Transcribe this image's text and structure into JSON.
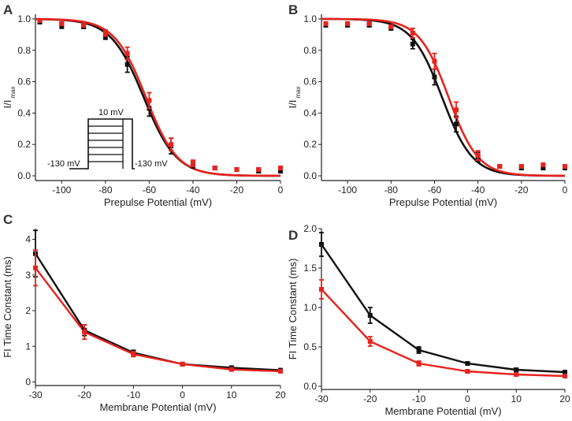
{
  "figure": {
    "panels": [
      "A",
      "B",
      "C",
      "D"
    ],
    "protocol": {
      "step_label": "10 mV",
      "hold_left_label": "-130 mV",
      "hold_right_label": "-130 mV"
    }
  },
  "colors": {
    "series1": "#111111",
    "series2": "#e8231e"
  },
  "chart_data": [
    {
      "panel": "A",
      "type": "line",
      "title": "",
      "xlabel": "Prepulse Potential (mV)",
      "ylabel": "I/I",
      "ylabel_sub": "max",
      "xlim": [
        -112,
        0
      ],
      "ylim": [
        -0.03,
        1.03
      ],
      "xticks": [
        -100,
        -80,
        -60,
        -40,
        -20,
        0
      ],
      "yticks": [
        0.0,
        0.2,
        0.4,
        0.6,
        0.8,
        1.0
      ],
      "xtick_labels": [
        "-100",
        "-80",
        "-60",
        "-40",
        "-20",
        "0"
      ],
      "ytick_labels": [
        "0.0",
        "0.2",
        "0.4",
        "0.6",
        "0.8",
        "1.0"
      ],
      "fits": [
        {
          "name": "black fit",
          "color": "#111111",
          "v_half": -62.5,
          "k": 7.5
        },
        {
          "name": "red fit",
          "color": "#e8231e",
          "v_half": -61.5,
          "k": 7.2
        }
      ],
      "series": [
        {
          "name": "black",
          "color": "#111111",
          "x": [
            -110,
            -100,
            -90,
            -80,
            -70,
            -60,
            -50,
            -40,
            -30,
            -20,
            -10,
            0
          ],
          "y": [
            0.98,
            0.96,
            0.95,
            0.89,
            0.71,
            0.43,
            0.19,
            0.07,
            0.05,
            0.04,
            0.03,
            0.03
          ],
          "err": [
            0.01,
            0.02,
            0.01,
            0.02,
            0.05,
            0.05,
            0.05,
            0.02,
            0.01,
            0.01,
            0.01,
            0.01
          ]
        },
        {
          "name": "red",
          "color": "#e8231e",
          "x": [
            -110,
            -100,
            -90,
            -80,
            -70,
            -60,
            -50,
            -40,
            -30,
            -20,
            -10,
            0
          ],
          "y": [
            0.99,
            0.97,
            0.96,
            0.91,
            0.78,
            0.48,
            0.2,
            0.08,
            0.05,
            0.04,
            0.04,
            0.05
          ],
          "err": [
            0.01,
            0.01,
            0.01,
            0.02,
            0.04,
            0.05,
            0.04,
            0.02,
            0.01,
            0.01,
            0.01,
            0.01
          ]
        }
      ]
    },
    {
      "panel": "B",
      "type": "line",
      "title": "",
      "xlabel": "Prepulse Potential (mV)",
      "ylabel": "I/I",
      "ylabel_sub": "max",
      "xlim": [
        -112,
        0
      ],
      "ylim": [
        -0.03,
        1.03
      ],
      "xticks": [
        -100,
        -80,
        -60,
        -40,
        -20,
        0
      ],
      "yticks": [
        0.0,
        0.2,
        0.4,
        0.6,
        0.8,
        1.0
      ],
      "xtick_labels": [
        "-100",
        "-80",
        "-60",
        "-40",
        "-20",
        "0"
      ],
      "ytick_labels": [
        "0.0",
        "0.2",
        "0.4",
        "0.6",
        "0.8",
        "1.0"
      ],
      "fits": [
        {
          "name": "black fit",
          "color": "#111111",
          "v_half": -56.5,
          "k": 7.0
        },
        {
          "name": "red fit",
          "color": "#e8231e",
          "v_half": -53.5,
          "k": 6.8
        }
      ],
      "series": [
        {
          "name": "black",
          "color": "#111111",
          "x": [
            -110,
            -100,
            -90,
            -80,
            -70,
            -60,
            -50,
            -40,
            -30,
            -20,
            -10,
            0
          ],
          "y": [
            0.96,
            0.96,
            0.96,
            0.94,
            0.84,
            0.63,
            0.33,
            0.12,
            0.06,
            0.05,
            0.05,
            0.05
          ],
          "err": [
            0.01,
            0.01,
            0.01,
            0.01,
            0.03,
            0.05,
            0.05,
            0.03,
            0.01,
            0.01,
            0.01,
            0.01
          ]
        },
        {
          "name": "red",
          "color": "#e8231e",
          "x": [
            -110,
            -100,
            -90,
            -80,
            -70,
            -60,
            -50,
            -40,
            -30,
            -20,
            -10,
            0
          ],
          "y": [
            0.97,
            0.97,
            0.97,
            0.95,
            0.91,
            0.73,
            0.42,
            0.13,
            0.06,
            0.06,
            0.07,
            0.06
          ],
          "err": [
            0.01,
            0.01,
            0.01,
            0.01,
            0.03,
            0.05,
            0.05,
            0.03,
            0.01,
            0.01,
            0.01,
            0.01
          ]
        }
      ]
    },
    {
      "panel": "C",
      "type": "line",
      "title": "",
      "xlabel": "Membrane Potential (mV)",
      "ylabel": "FI Time Constant (ms)",
      "ylabel_sub": "",
      "xlim": [
        -30,
        20
      ],
      "ylim": [
        -0.1,
        4.3
      ],
      "xticks": [
        -30,
        -20,
        -10,
        0,
        10,
        20
      ],
      "yticks": [
        0,
        1,
        2,
        3,
        4
      ],
      "xtick_labels": [
        "-30",
        "-20",
        "-10",
        "0",
        "10",
        "20"
      ],
      "ytick_labels": [
        "0",
        "1",
        "2",
        "3",
        "4"
      ],
      "fits": [],
      "series": [
        {
          "name": "black",
          "color": "#111111",
          "x": [
            -30,
            -20,
            -10,
            0,
            10,
            20
          ],
          "y": [
            3.6,
            1.45,
            0.82,
            0.5,
            0.4,
            0.33
          ],
          "err": [
            0.65,
            0.15,
            0.07,
            0.04,
            0.03,
            0.02
          ]
        },
        {
          "name": "red",
          "color": "#e8231e",
          "x": [
            -30,
            -20,
            -10,
            0,
            10,
            20
          ],
          "y": [
            3.2,
            1.4,
            0.78,
            0.5,
            0.35,
            0.3
          ],
          "err": [
            0.5,
            0.2,
            0.07,
            0.04,
            0.03,
            0.02
          ]
        }
      ]
    },
    {
      "panel": "D",
      "type": "line",
      "title": "",
      "xlabel": "Membrane Potential (mV)",
      "ylabel": "FI Time Constant (ms)",
      "ylabel_sub": "",
      "xlim": [
        -30,
        20
      ],
      "ylim": [
        -0.04,
        2.0
      ],
      "xticks": [
        -30,
        -20,
        -10,
        0,
        10,
        20
      ],
      "yticks": [
        0.0,
        0.5,
        1.0,
        1.5,
        2.0
      ],
      "xtick_labels": [
        "-30",
        "-20",
        "-10",
        "0",
        "10",
        "20"
      ],
      "ytick_labels": [
        "0.0",
        "0.5",
        "1.0",
        "1.5",
        "2.0"
      ],
      "fits": [],
      "series": [
        {
          "name": "black",
          "color": "#111111",
          "x": [
            -30,
            -20,
            -10,
            0,
            10,
            20
          ],
          "y": [
            1.8,
            0.9,
            0.46,
            0.29,
            0.21,
            0.18
          ],
          "err": [
            0.15,
            0.1,
            0.04,
            0.02,
            0.02,
            0.02
          ]
        },
        {
          "name": "red",
          "color": "#e8231e",
          "x": [
            -30,
            -20,
            -10,
            0,
            10,
            20
          ],
          "y": [
            1.23,
            0.57,
            0.29,
            0.19,
            0.15,
            0.13
          ],
          "err": [
            0.12,
            0.06,
            0.03,
            0.02,
            0.01,
            0.01
          ]
        }
      ]
    }
  ]
}
